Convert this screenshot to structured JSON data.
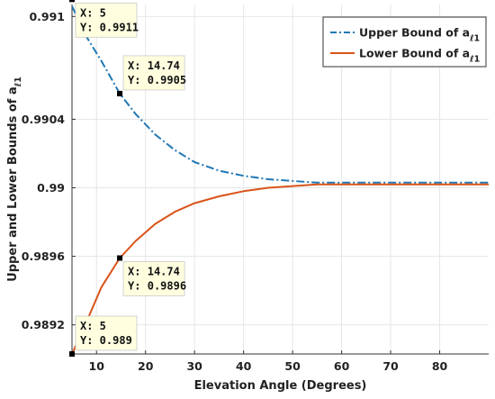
{
  "chart_data": {
    "type": "line",
    "title": "",
    "xlabel": "Elevation Angle (Degrees)",
    "ylabel": "Upper and Lower Bounds of a",
    "ylabel_subscript": "ℓ1",
    "xlim": [
      5,
      90
    ],
    "ylim": [
      0.98903,
      0.99107
    ],
    "xticks": [
      10,
      20,
      30,
      40,
      50,
      60,
      70,
      80
    ],
    "xtick_labels": [
      "10",
      "20",
      "30",
      "40",
      "50",
      "60",
      "70",
      "80"
    ],
    "yticks": [
      0.9892,
      0.9896,
      0.99,
      0.9904,
      0.991
    ],
    "ytick_labels": [
      "0.9892",
      "0.9896",
      "0.99",
      "0.9904",
      "0.991"
    ],
    "grid": true,
    "legend_position": "top-right",
    "series": [
      {
        "name": "Upper Bound of a",
        "name_subscript": "ℓ1",
        "color": "#1f77b4",
        "dash": "dash-dot",
        "x": [
          5,
          8,
          11,
          14.74,
          18,
          22,
          26,
          30,
          35,
          40,
          45,
          50,
          55,
          60,
          65,
          70,
          75,
          80,
          85,
          90
        ],
        "y": [
          0.99106,
          0.99088,
          0.99074,
          0.99055,
          0.99043,
          0.99031,
          0.99022,
          0.99015,
          0.9901,
          0.99007,
          0.99005,
          0.99004,
          0.99003,
          0.99003,
          0.99003,
          0.99003,
          0.99003,
          0.99003,
          0.99003,
          0.99003
        ]
      },
      {
        "name": "Lower Bound of a",
        "name_subscript": "ℓ1",
        "color": "#d95319",
        "dash": "solid",
        "x": [
          5,
          8,
          11,
          14.74,
          18,
          22,
          26,
          30,
          35,
          40,
          45,
          50,
          55,
          60,
          65,
          70,
          75,
          80,
          85,
          90
        ],
        "y": [
          0.98903,
          0.98922,
          0.98942,
          0.98959,
          0.98969,
          0.98979,
          0.98986,
          0.98991,
          0.98995,
          0.98998,
          0.99,
          0.99001,
          0.99002,
          0.99002,
          0.99002,
          0.99002,
          0.99002,
          0.99002,
          0.99002,
          0.99002
        ]
      }
    ],
    "datatips": [
      {
        "x": 5,
        "y": 0.9911,
        "lines": [
          "X: 5",
          "Y: 0.9911"
        ],
        "series": 0,
        "anchor": "below-right"
      },
      {
        "x": 14.74,
        "y": 0.99055,
        "lines": [
          "X: 14.74",
          "Y: 0.9905"
        ],
        "series": 0,
        "anchor": "above-right"
      },
      {
        "x": 14.74,
        "y": 0.98959,
        "lines": [
          "X: 14.74",
          "Y: 0.9896"
        ],
        "series": 1,
        "anchor": "below-right"
      },
      {
        "x": 5,
        "y": 0.98903,
        "lines": [
          "X: 5",
          "Y: 0.989"
        ],
        "series": 1,
        "anchor": "above-right"
      }
    ]
  }
}
